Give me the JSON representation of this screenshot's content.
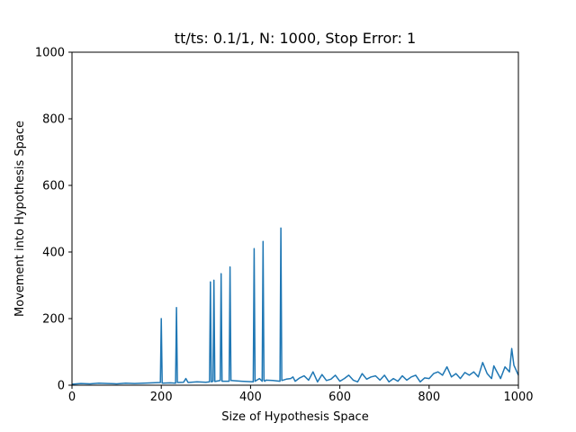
{
  "chart_data": {
    "type": "line",
    "title": "tt/ts: 0.1/1, N: 1000, Stop Error: 1",
    "xlabel": "Size of Hypothesis Space",
    "ylabel": "Movement into Hypothesis Space",
    "xlim": [
      0,
      1000
    ],
    "ylim": [
      0,
      1000
    ],
    "xticks": [
      0,
      200,
      400,
      600,
      800,
      1000
    ],
    "yticks": [
      0,
      200,
      400,
      600,
      800,
      1000
    ],
    "grid": false,
    "line_color": "#1f77b4",
    "series": [
      {
        "x": [
          0,
          20,
          40,
          60,
          80,
          100,
          120,
          140,
          160,
          180,
          198,
          200,
          202,
          220,
          232,
          234,
          236,
          250,
          255,
          260,
          280,
          300,
          308,
          310,
          312,
          316,
          318,
          320,
          332,
          334,
          336,
          352,
          354,
          356,
          380,
          406,
          408,
          410,
          420,
          426,
          428,
          430,
          432,
          434,
          450,
          466,
          468,
          470,
          480,
          490,
          495,
          500,
          510,
          520,
          530,
          540,
          550,
          560,
          570,
          580,
          590,
          600,
          610,
          620,
          630,
          640,
          650,
          660,
          670,
          680,
          690,
          700,
          710,
          720,
          730,
          740,
          750,
          760,
          770,
          780,
          790,
          800,
          810,
          820,
          830,
          840,
          850,
          860,
          870,
          880,
          890,
          900,
          910,
          920,
          930,
          940,
          945,
          950,
          960,
          970,
          980,
          985,
          990,
          1000
        ],
        "y": [
          3,
          5,
          4,
          6,
          5,
          4,
          6,
          5,
          6,
          7,
          8,
          200,
          6,
          7,
          6,
          233,
          8,
          9,
          20,
          8,
          10,
          9,
          10,
          310,
          10,
          12,
          315,
          11,
          14,
          335,
          12,
          12,
          355,
          14,
          12,
          10,
          410,
          12,
          20,
          12,
          432,
          14,
          12,
          15,
          14,
          12,
          472,
          14,
          18,
          20,
          25,
          12,
          22,
          28,
          15,
          40,
          10,
          32,
          14,
          18,
          30,
          12,
          20,
          30,
          15,
          10,
          35,
          18,
          25,
          28,
          15,
          30,
          10,
          20,
          12,
          28,
          15,
          25,
          30,
          10,
          22,
          20,
          35,
          40,
          30,
          55,
          25,
          35,
          20,
          38,
          30,
          40,
          25,
          68,
          35,
          20,
          58,
          45,
          20,
          55,
          40,
          110,
          60,
          30
        ]
      }
    ]
  }
}
